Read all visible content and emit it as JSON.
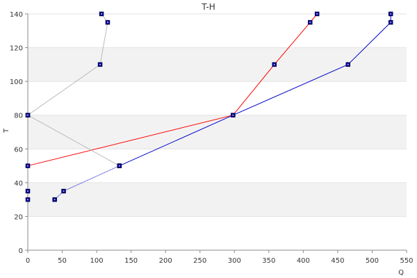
{
  "chart_data": {
    "type": "line",
    "title": "T-H",
    "xlabel": "Q",
    "ylabel": "T",
    "xlim": [
      0,
      550
    ],
    "ylim": [
      0,
      140
    ],
    "x_ticks": [
      "0",
      "50",
      "100",
      "150",
      "200",
      "250",
      "300",
      "350",
      "400",
      "450",
      "500",
      "550"
    ],
    "y_ticks": [
      "0",
      "20",
      "40",
      "60",
      "80",
      "100",
      "120",
      "140"
    ],
    "grid": "horizontal alternating bands",
    "legend": "none",
    "series": [
      {
        "color": "#ff0000",
        "style": "solid",
        "points": [
          [
            0,
            50
          ],
          [
            298,
            80
          ],
          [
            358,
            110
          ],
          [
            410,
            135
          ],
          [
            420,
            140
          ]
        ]
      },
      {
        "color": "#0000cc",
        "style": "solid",
        "points": [
          [
            133,
            50
          ],
          [
            298,
            80
          ],
          [
            465,
            110
          ],
          [
            527,
            135
          ],
          [
            527,
            140
          ]
        ]
      },
      {
        "color": "#0000cc",
        "style": "dotted",
        "points": [
          [
            39,
            30
          ],
          [
            52,
            35
          ],
          [
            133,
            50
          ]
        ]
      },
      {
        "color": "#bbbbbb",
        "style": "solid",
        "points": [
          [
            0,
            80
          ],
          [
            133,
            50
          ]
        ]
      },
      {
        "color": "#bbbbbb",
        "style": "solid",
        "points": [
          [
            0,
            80
          ],
          [
            105,
            110
          ],
          [
            116,
            135
          ],
          [
            107,
            140
          ]
        ]
      }
    ],
    "extra_markers": [
      [
        0,
        30
      ],
      [
        0,
        35
      ]
    ]
  }
}
